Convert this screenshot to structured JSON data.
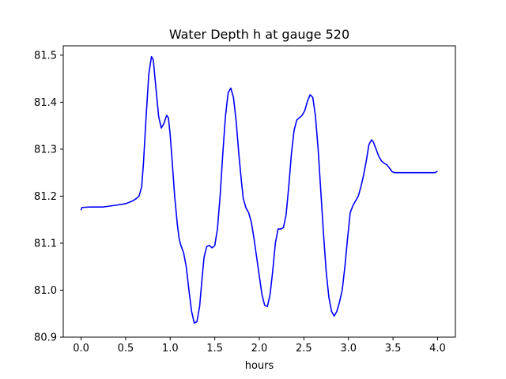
{
  "chart_data": {
    "type": "line",
    "title": "Water Depth h at gauge 520",
    "xlabel": "hours",
    "ylabel": "",
    "xlim": [
      -0.2,
      4.2
    ],
    "ylim": [
      80.9,
      81.52
    ],
    "xticks": [
      0.0,
      0.5,
      1.0,
      1.5,
      2.0,
      2.5,
      3.0,
      3.5,
      4.0
    ],
    "xtick_labels": [
      "0.0",
      "0.5",
      "1.0",
      "1.5",
      "2.0",
      "2.5",
      "3.0",
      "3.5",
      "4.0"
    ],
    "yticks": [
      80.9,
      81.0,
      81.1,
      81.2,
      81.3,
      81.4,
      81.5
    ],
    "ytick_labels": [
      "80.9",
      "81.0",
      "81.1",
      "81.2",
      "81.3",
      "81.4",
      "81.5"
    ],
    "grid": false,
    "series": [
      {
        "color": "#0000ff",
        "x": [
          0.0,
          0.01,
          0.1,
          0.25,
          0.4,
          0.5,
          0.58,
          0.62,
          0.65,
          0.68,
          0.7,
          0.73,
          0.76,
          0.79,
          0.81,
          0.84,
          0.87,
          0.9,
          0.93,
          0.96,
          0.98,
          1.0,
          1.02,
          1.05,
          1.08,
          1.1,
          1.12,
          1.15,
          1.18,
          1.21,
          1.24,
          1.27,
          1.3,
          1.33,
          1.36,
          1.38,
          1.41,
          1.44,
          1.47,
          1.5,
          1.53,
          1.56,
          1.59,
          1.62,
          1.65,
          1.68,
          1.71,
          1.74,
          1.77,
          1.8,
          1.82,
          1.85,
          1.88,
          1.91,
          1.94,
          1.97,
          2.0,
          2.03,
          2.06,
          2.09,
          2.12,
          2.15,
          2.18,
          2.21,
          2.24,
          2.27,
          2.3,
          2.33,
          2.36,
          2.39,
          2.42,
          2.45,
          2.48,
          2.51,
          2.54,
          2.57,
          2.6,
          2.63,
          2.66,
          2.69,
          2.72,
          2.75,
          2.78,
          2.81,
          2.84,
          2.87,
          2.9,
          2.93,
          2.96,
          2.99,
          3.02,
          3.05,
          3.08,
          3.11,
          3.14,
          3.17,
          3.2,
          3.23,
          3.26,
          3.28,
          3.31,
          3.34,
          3.37,
          3.4,
          3.43,
          3.46,
          3.49,
          3.52,
          3.55,
          3.58,
          3.61,
          3.64,
          3.67,
          3.7,
          3.73,
          3.76,
          3.79,
          3.82,
          3.85,
          3.88,
          3.91,
          3.94,
          3.97,
          4.0
        ],
        "y": [
          81.17,
          81.176,
          81.177,
          81.177,
          81.181,
          81.184,
          81.19,
          81.195,
          81.2,
          81.22,
          81.27,
          81.37,
          81.46,
          81.497,
          81.49,
          81.43,
          81.37,
          81.345,
          81.355,
          81.372,
          81.367,
          81.33,
          81.28,
          81.2,
          81.14,
          81.11,
          81.095,
          81.08,
          81.05,
          81.0,
          80.955,
          80.93,
          80.933,
          80.965,
          81.03,
          81.07,
          81.093,
          81.095,
          81.09,
          81.095,
          81.13,
          81.2,
          81.29,
          81.37,
          81.42,
          81.43,
          81.41,
          81.36,
          81.29,
          81.23,
          81.195,
          81.175,
          81.165,
          81.145,
          81.11,
          81.07,
          81.03,
          80.99,
          80.968,
          80.965,
          80.99,
          81.04,
          81.1,
          81.13,
          81.13,
          81.133,
          81.16,
          81.22,
          81.29,
          81.34,
          81.362,
          81.367,
          81.372,
          81.382,
          81.402,
          81.416,
          81.41,
          81.37,
          81.3,
          81.21,
          81.12,
          81.04,
          80.985,
          80.955,
          80.945,
          80.955,
          80.975,
          81.0,
          81.05,
          81.11,
          81.165,
          81.18,
          81.19,
          81.2,
          81.22,
          81.245,
          81.275,
          81.31,
          81.32,
          81.315,
          81.3,
          81.285,
          81.275,
          81.27,
          81.267,
          81.26,
          81.252,
          81.25,
          81.25,
          81.25,
          81.25,
          81.25,
          81.25,
          81.25,
          81.25,
          81.25,
          81.25,
          81.25,
          81.25,
          81.25,
          81.25,
          81.25,
          81.25,
          81.253
        ]
      }
    ]
  }
}
